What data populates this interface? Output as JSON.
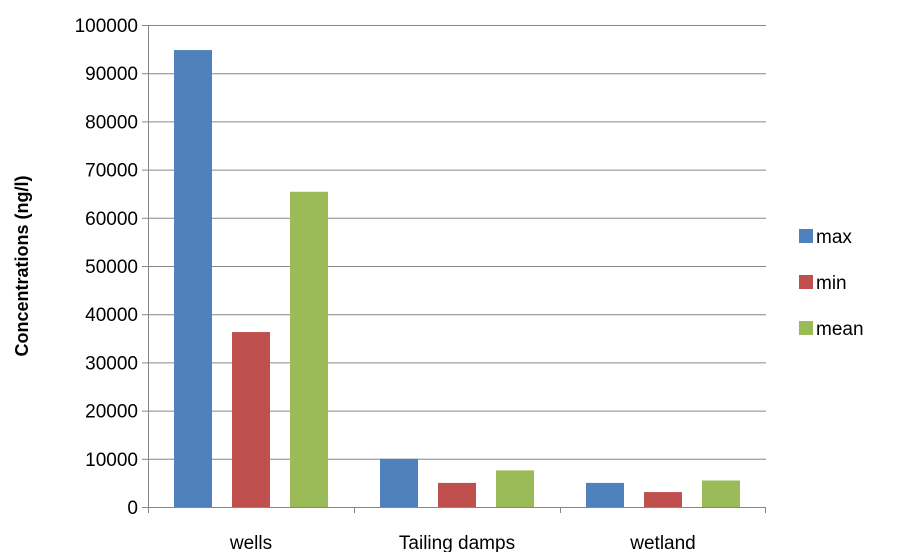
{
  "chart_data": {
    "type": "bar",
    "title": "",
    "xlabel": "",
    "ylabel": "Concentrations (ng/l)",
    "categories": [
      "wells",
      "Tailing damps",
      "wetland"
    ],
    "series": [
      {
        "name": "max",
        "values": [
          94800,
          10000,
          5000
        ],
        "color": "#4F81BD"
      },
      {
        "name": "min",
        "values": [
          36300,
          5000,
          3100
        ],
        "color": "#C0504D"
      },
      {
        "name": "mean",
        "values": [
          65400,
          7600,
          5500
        ],
        "color": "#9BBB59"
      }
    ],
    "ylim": [
      0,
      100000
    ],
    "yticks": [
      0,
      10000,
      20000,
      30000,
      40000,
      50000,
      60000,
      70000,
      80000,
      90000,
      100000
    ],
    "ytick_labels": [
      "0",
      "10000",
      "20000",
      "30000",
      "40000",
      "50000",
      "60000",
      "70000",
      "80000",
      "90000",
      "100000"
    ],
    "grid": true,
    "legend_position": "right"
  }
}
